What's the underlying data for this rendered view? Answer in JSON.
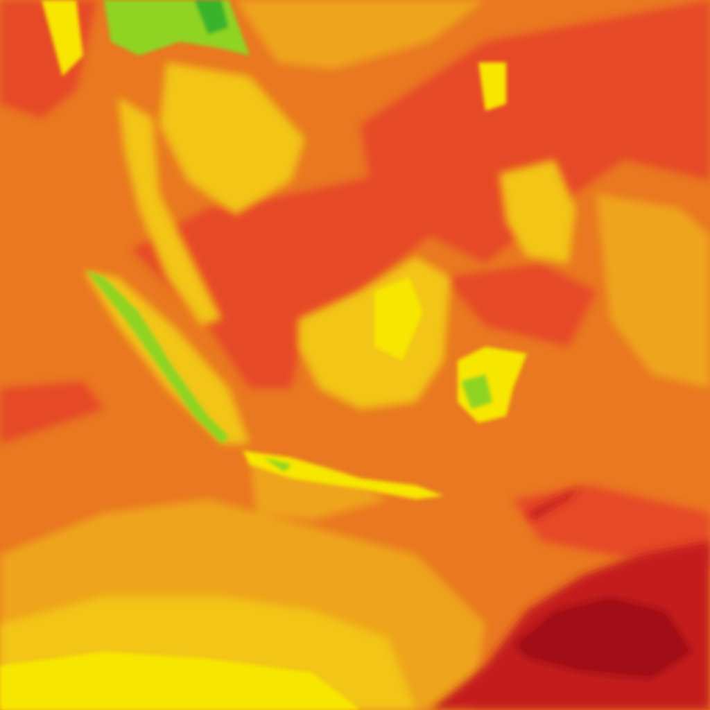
{
  "map": {
    "type": "temperature-heatmap-tile",
    "palette": {
      "base_orange": "#e97820",
      "warm_red": "#e64a25",
      "hot_red": "#c41a1a",
      "hottest_darkred": "#a00c18",
      "mild_amber": "#eea41e",
      "cool_yellow": "#f2c513",
      "cooler_yellow": "#f7e600",
      "cold_green": "#8fd421",
      "coldest_green": "#39b32a"
    }
  }
}
